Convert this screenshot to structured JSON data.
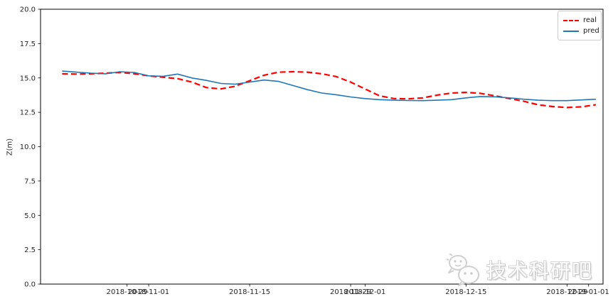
{
  "frame": {
    "background": "#ffffff",
    "spine_color": "#000000",
    "tick_color": "#000000",
    "tick_label_color": "#262626"
  },
  "watermark": {
    "text": "技术科研吧",
    "icon": "wechat-icon",
    "color": "#d6d6d6"
  },
  "chart_data": {
    "type": "line",
    "title": "",
    "xlabel": "",
    "ylabel": "Z(m)",
    "ylim": [
      0.0,
      20.0
    ],
    "yticks": [
      0.0,
      2.5,
      5.0,
      7.5,
      10.0,
      12.5,
      15.0,
      17.5,
      20.0
    ],
    "xlim": [
      "2018-10-17",
      "2019-01-03"
    ],
    "xticks": [
      {
        "date": "2018-10-29",
        "label": "2018-10-29"
      },
      {
        "date": "2018-11-01",
        "label": "2018-11-01"
      },
      {
        "date": "2018-11-15",
        "label": "2018-11-15"
      },
      {
        "date": "2018-11-29",
        "label": "2018-11-29"
      },
      {
        "date": "2018-12-01",
        "label": "2018-12-01"
      },
      {
        "date": "2018-12-15",
        "label": "2018-12-15"
      },
      {
        "date": "2018-12-29",
        "label": "2018-12-29"
      },
      {
        "date": "2019-01-01",
        "label": "2019-01-01"
      }
    ],
    "grid": false,
    "legend_position": "upper right",
    "x": [
      "2018-10-20",
      "2018-10-22",
      "2018-10-24",
      "2018-10-26",
      "2018-10-28",
      "2018-10-30",
      "2018-11-01",
      "2018-11-03",
      "2018-11-05",
      "2018-11-07",
      "2018-11-09",
      "2018-11-11",
      "2018-11-13",
      "2018-11-15",
      "2018-11-17",
      "2018-11-19",
      "2018-11-21",
      "2018-11-23",
      "2018-11-25",
      "2018-11-27",
      "2018-11-29",
      "2018-12-01",
      "2018-12-03",
      "2018-12-05",
      "2018-12-07",
      "2018-12-09",
      "2018-12-11",
      "2018-12-13",
      "2018-12-15",
      "2018-12-17",
      "2018-12-19",
      "2018-12-21",
      "2018-12-23",
      "2018-12-25",
      "2018-12-27",
      "2018-12-29",
      "2018-12-31",
      "2019-01-02"
    ],
    "series": [
      {
        "name": "real",
        "color": "#ff0000",
        "line_style": "dashed",
        "line_width": 2.2,
        "values": [
          15.3,
          15.28,
          15.3,
          15.35,
          15.4,
          15.3,
          15.15,
          15.05,
          14.95,
          14.7,
          14.3,
          14.2,
          14.4,
          14.8,
          15.2,
          15.42,
          15.45,
          15.42,
          15.3,
          15.1,
          14.7,
          14.2,
          13.7,
          13.5,
          13.48,
          13.55,
          13.75,
          13.9,
          13.95,
          13.88,
          13.7,
          13.5,
          13.3,
          13.05,
          12.92,
          12.85,
          12.9,
          13.05
        ]
      },
      {
        "name": "pred",
        "color": "#1f77b4",
        "line_style": "solid",
        "line_width": 1.6,
        "values": [
          15.5,
          15.42,
          15.35,
          15.3,
          15.45,
          15.4,
          15.15,
          15.12,
          15.28,
          15.0,
          14.82,
          14.6,
          14.55,
          14.7,
          14.85,
          14.75,
          14.45,
          14.15,
          13.9,
          13.78,
          13.62,
          13.5,
          13.42,
          13.38,
          13.36,
          13.35,
          13.38,
          13.42,
          13.55,
          13.65,
          13.63,
          13.55,
          13.45,
          13.38,
          13.35,
          13.35,
          13.4,
          13.45
        ]
      }
    ]
  }
}
